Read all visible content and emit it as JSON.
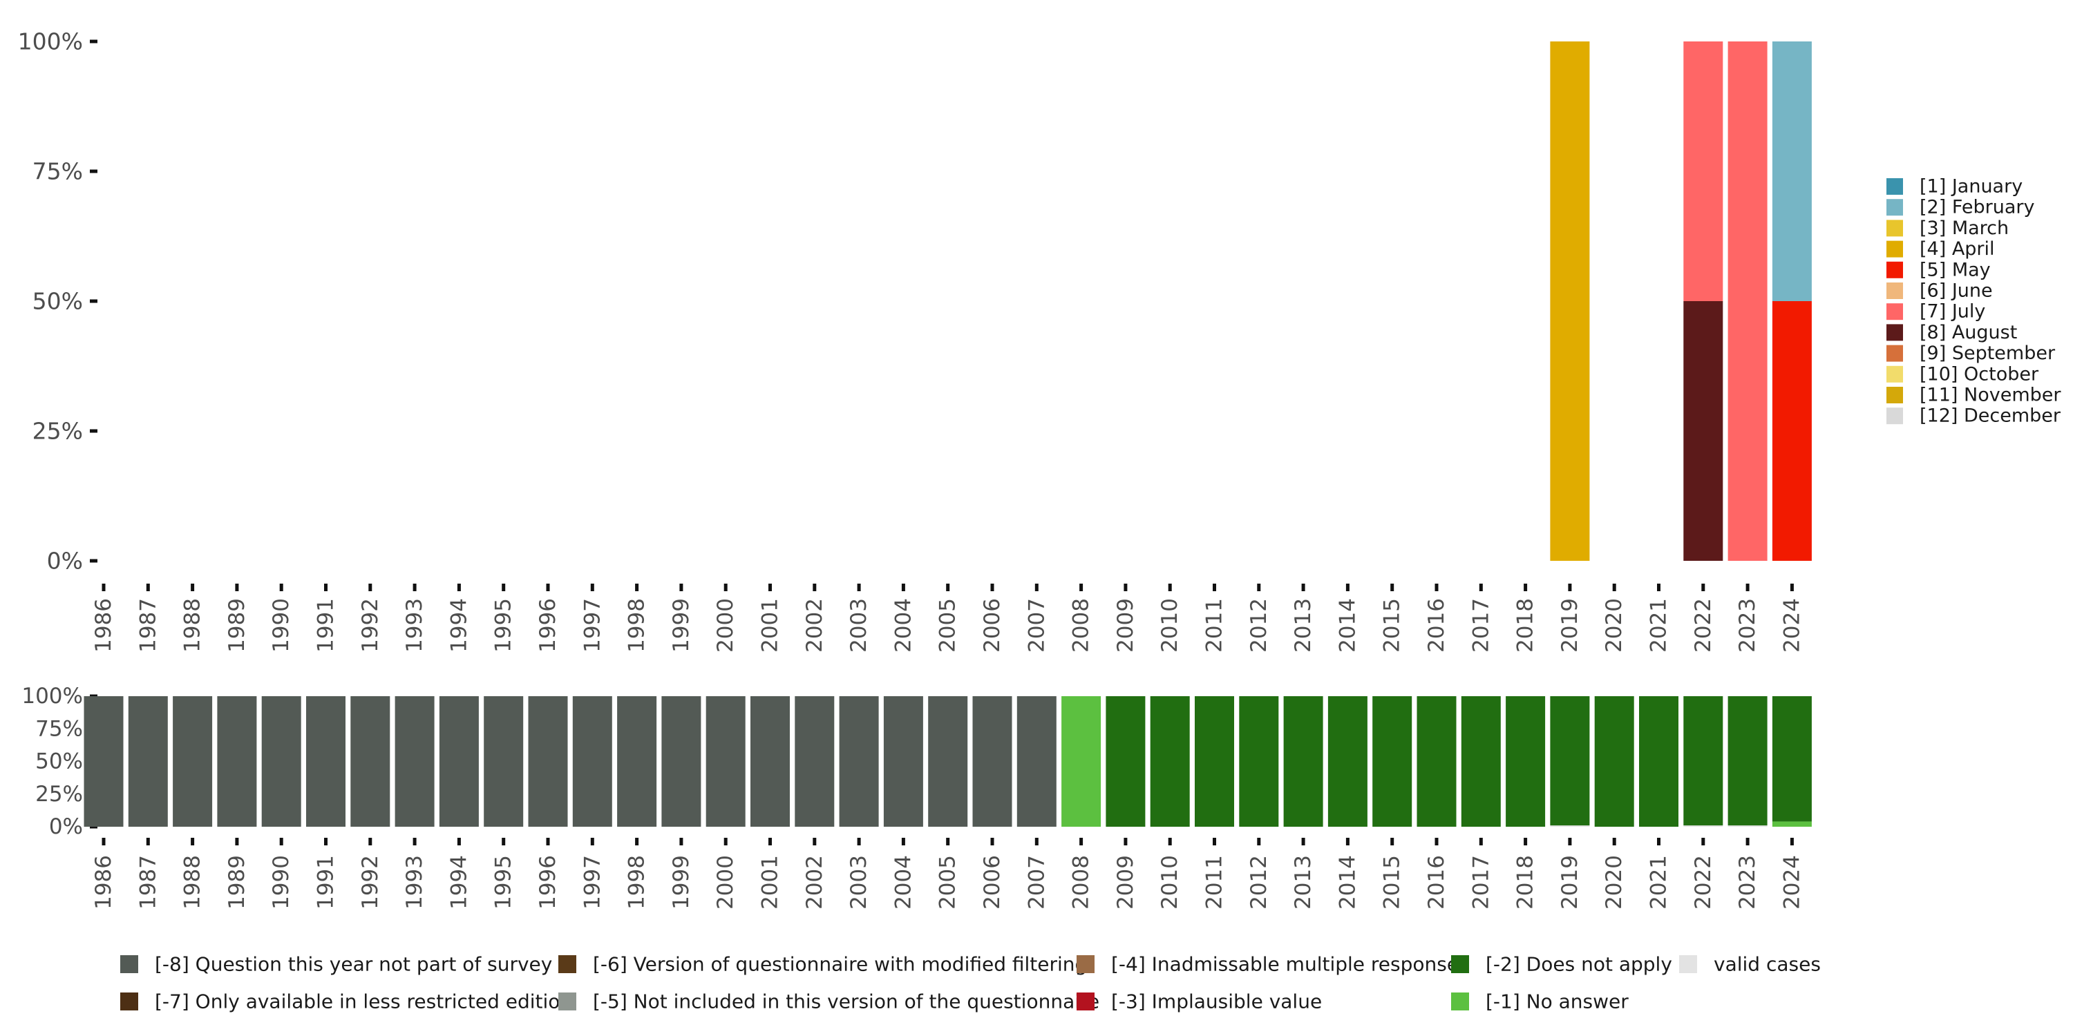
{
  "chart_data": [
    {
      "type": "bar",
      "stacked": true,
      "panel": "top",
      "x": [
        "1986",
        "1987",
        "1988",
        "1989",
        "1990",
        "1991",
        "1992",
        "1993",
        "1994",
        "1995",
        "1996",
        "1997",
        "1998",
        "1999",
        "2000",
        "2001",
        "2002",
        "2003",
        "2004",
        "2005",
        "2006",
        "2007",
        "2008",
        "2009",
        "2010",
        "2011",
        "2012",
        "2013",
        "2014",
        "2015",
        "2016",
        "2017",
        "2018",
        "2019",
        "2020",
        "2021",
        "2022",
        "2023",
        "2024"
      ],
      "y_ticks": [
        "0%",
        "25%",
        "50%",
        "75%",
        "100%"
      ],
      "ylim": [
        0,
        100
      ],
      "grid": false,
      "legend_position": "right",
      "legend": [
        {
          "name": "[1] January",
          "color": "#3a93ad"
        },
        {
          "name": "[2] February",
          "color": "#76b5c5"
        },
        {
          "name": "[3] March",
          "color": "#e8c52c"
        },
        {
          "name": "[4] April",
          "color": "#e0ac00"
        },
        {
          "name": "[5] May",
          "color": "#f21a00"
        },
        {
          "name": "[6] June",
          "color": "#f0b77b"
        },
        {
          "name": "[7] July",
          "color": "#ff6666"
        },
        {
          "name": "[8] August",
          "color": "#5c1a1a"
        },
        {
          "name": "[9] September",
          "color": "#d6703a"
        },
        {
          "name": "[10] October",
          "color": "#f2dc6b"
        },
        {
          "name": "[11] November",
          "color": "#d4a80a"
        },
        {
          "name": "[12] December",
          "color": "#d9d9d9"
        }
      ],
      "bars": [
        {
          "x": "2019",
          "segments": [
            {
              "name": "[4] April",
              "value": 100,
              "color": "#e0ac00"
            }
          ]
        },
        {
          "x": "2022",
          "segments": [
            {
              "name": "[8] August",
              "value": 50,
              "color": "#5c1a1a"
            },
            {
              "name": "[7] July",
              "value": 50,
              "color": "#ff6666"
            }
          ]
        },
        {
          "x": "2023",
          "segments": [
            {
              "name": "[7] July",
              "value": 100,
              "color": "#ff6666"
            }
          ]
        },
        {
          "x": "2024",
          "segments": [
            {
              "name": "[5] May",
              "value": 50,
              "color": "#f21a00"
            },
            {
              "name": "[2] February",
              "value": 50,
              "color": "#76b5c5"
            }
          ]
        }
      ]
    },
    {
      "type": "bar",
      "stacked": true,
      "panel": "bottom",
      "x": [
        "1986",
        "1987",
        "1988",
        "1989",
        "1990",
        "1991",
        "1992",
        "1993",
        "1994",
        "1995",
        "1996",
        "1997",
        "1998",
        "1999",
        "2000",
        "2001",
        "2002",
        "2003",
        "2004",
        "2005",
        "2006",
        "2007",
        "2008",
        "2009",
        "2010",
        "2011",
        "2012",
        "2013",
        "2014",
        "2015",
        "2016",
        "2017",
        "2018",
        "2019",
        "2020",
        "2021",
        "2022",
        "2023",
        "2024"
      ],
      "y_ticks": [
        "0%",
        "25%",
        "50%",
        "75%",
        "100%"
      ],
      "ylim": [
        0,
        100
      ],
      "grid": false,
      "legend_position": "bottom",
      "legend": [
        {
          "name": "[-8] Question this year not part of survey",
          "color": "#535a55"
        },
        {
          "name": "[-7] Only available in less restricted edition",
          "color": "#4d2f14"
        },
        {
          "name": "[-6] Version of questionnaire with modified filtering",
          "color": "#5a3a18"
        },
        {
          "name": "[-5] Not included in this version of the questionnaire",
          "color": "#8f9690"
        },
        {
          "name": "[-4] Inadmissable multiple response",
          "color": "#9a6b45"
        },
        {
          "name": "[-3] Implausible value",
          "color": "#b3121f"
        },
        {
          "name": "[-2] Does not apply",
          "color": "#216e11"
        },
        {
          "name": "[-1] No answer",
          "color": "#5cc040"
        },
        {
          "name": "valid cases",
          "color": "#e3e3e3"
        }
      ],
      "bars": [
        {
          "x": "1986",
          "segments": [
            {
              "name": "[-8] Question this year not part of survey",
              "value": 100
            }
          ]
        },
        {
          "x": "1987",
          "segments": [
            {
              "name": "[-8] Question this year not part of survey",
              "value": 100
            }
          ]
        },
        {
          "x": "1988",
          "segments": [
            {
              "name": "[-8] Question this year not part of survey",
              "value": 100
            }
          ]
        },
        {
          "x": "1989",
          "segments": [
            {
              "name": "[-8] Question this year not part of survey",
              "value": 100
            }
          ]
        },
        {
          "x": "1990",
          "segments": [
            {
              "name": "[-8] Question this year not part of survey",
              "value": 100
            }
          ]
        },
        {
          "x": "1991",
          "segments": [
            {
              "name": "[-8] Question this year not part of survey",
              "value": 100
            }
          ]
        },
        {
          "x": "1992",
          "segments": [
            {
              "name": "[-8] Question this year not part of survey",
              "value": 100
            }
          ]
        },
        {
          "x": "1993",
          "segments": [
            {
              "name": "[-8] Question this year not part of survey",
              "value": 100
            }
          ]
        },
        {
          "x": "1994",
          "segments": [
            {
              "name": "[-8] Question this year not part of survey",
              "value": 100
            }
          ]
        },
        {
          "x": "1995",
          "segments": [
            {
              "name": "[-8] Question this year not part of survey",
              "value": 100
            }
          ]
        },
        {
          "x": "1996",
          "segments": [
            {
              "name": "[-8] Question this year not part of survey",
              "value": 100
            }
          ]
        },
        {
          "x": "1997",
          "segments": [
            {
              "name": "[-8] Question this year not part of survey",
              "value": 100
            }
          ]
        },
        {
          "x": "1998",
          "segments": [
            {
              "name": "[-8] Question this year not part of survey",
              "value": 100
            }
          ]
        },
        {
          "x": "1999",
          "segments": [
            {
              "name": "[-8] Question this year not part of survey",
              "value": 100
            }
          ]
        },
        {
          "x": "2000",
          "segments": [
            {
              "name": "[-8] Question this year not part of survey",
              "value": 100
            }
          ]
        },
        {
          "x": "2001",
          "segments": [
            {
              "name": "[-8] Question this year not part of survey",
              "value": 100
            }
          ]
        },
        {
          "x": "2002",
          "segments": [
            {
              "name": "[-8] Question this year not part of survey",
              "value": 100
            }
          ]
        },
        {
          "x": "2003",
          "segments": [
            {
              "name": "[-8] Question this year not part of survey",
              "value": 100
            }
          ]
        },
        {
          "x": "2004",
          "segments": [
            {
              "name": "[-8] Question this year not part of survey",
              "value": 100
            }
          ]
        },
        {
          "x": "2005",
          "segments": [
            {
              "name": "[-8] Question this year not part of survey",
              "value": 100
            }
          ]
        },
        {
          "x": "2006",
          "segments": [
            {
              "name": "[-8] Question this year not part of survey",
              "value": 100
            }
          ]
        },
        {
          "x": "2007",
          "segments": [
            {
              "name": "[-8] Question this year not part of survey",
              "value": 100
            }
          ]
        },
        {
          "x": "2008",
          "segments": [
            {
              "name": "[-1] No answer",
              "value": 100
            }
          ]
        },
        {
          "x": "2009",
          "segments": [
            {
              "name": "[-2] Does not apply",
              "value": 100
            }
          ]
        },
        {
          "x": "2010",
          "segments": [
            {
              "name": "[-2] Does not apply",
              "value": 100
            }
          ]
        },
        {
          "x": "2011",
          "segments": [
            {
              "name": "[-2] Does not apply",
              "value": 100
            }
          ]
        },
        {
          "x": "2012",
          "segments": [
            {
              "name": "[-2] Does not apply",
              "value": 100
            }
          ]
        },
        {
          "x": "2013",
          "segments": [
            {
              "name": "[-2] Does not apply",
              "value": 100
            }
          ]
        },
        {
          "x": "2014",
          "segments": [
            {
              "name": "[-2] Does not apply",
              "value": 100
            }
          ]
        },
        {
          "x": "2015",
          "segments": [
            {
              "name": "[-2] Does not apply",
              "value": 100
            }
          ]
        },
        {
          "x": "2016",
          "segments": [
            {
              "name": "[-2] Does not apply",
              "value": 100
            }
          ]
        },
        {
          "x": "2017",
          "segments": [
            {
              "name": "[-2] Does not apply",
              "value": 100
            }
          ]
        },
        {
          "x": "2018",
          "segments": [
            {
              "name": "[-2] Does not apply",
              "value": 100
            }
          ]
        },
        {
          "x": "2019",
          "segments": [
            {
              "name": "valid cases",
              "value": 1
            },
            {
              "name": "[-2] Does not apply",
              "value": 99
            }
          ]
        },
        {
          "x": "2020",
          "segments": [
            {
              "name": "[-2] Does not apply",
              "value": 100
            }
          ]
        },
        {
          "x": "2021",
          "segments": [
            {
              "name": "[-2] Does not apply",
              "value": 100
            }
          ]
        },
        {
          "x": "2022",
          "segments": [
            {
              "name": "valid cases",
              "value": 1
            },
            {
              "name": "[-2] Does not apply",
              "value": 99
            }
          ]
        },
        {
          "x": "2023",
          "segments": [
            {
              "name": "valid cases",
              "value": 1
            },
            {
              "name": "[-2] Does not apply",
              "value": 99
            }
          ]
        },
        {
          "x": "2024",
          "segments": [
            {
              "name": "[-1] No answer",
              "value": 4
            },
            {
              "name": "[-2] Does not apply",
              "value": 96
            }
          ]
        }
      ]
    }
  ]
}
